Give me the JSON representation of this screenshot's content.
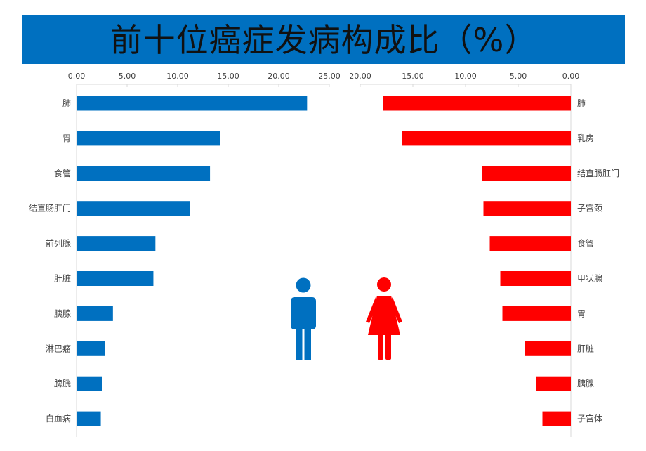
{
  "title": "前十位癌症发病构成比（%）",
  "colors": {
    "banner": "#0070C0",
    "male": "#0070C0",
    "female": "#FF0000",
    "axis": "#D9D9D9",
    "text": "#404040"
  },
  "chart_data": [
    {
      "type": "bar",
      "orientation": "horizontal",
      "side": "left",
      "series_color": "#0070C0",
      "icon": "male-person-icon",
      "categories": [
        "肺",
        "胃",
        "食管",
        "结直肠肛门",
        "前列腺",
        "肝脏",
        "胰腺",
        "淋巴瘤",
        "膀胱",
        "白血病"
      ],
      "values": [
        22.8,
        14.2,
        13.2,
        11.2,
        7.8,
        7.6,
        3.6,
        2.8,
        2.5,
        2.4
      ],
      "xlim": [
        0,
        25
      ],
      "ticks": [
        "0.00",
        "5.00",
        "10.00",
        "15.00",
        "20.00",
        "25.00"
      ],
      "axis_position": "top"
    },
    {
      "type": "bar",
      "orientation": "horizontal",
      "side": "right",
      "reversed": true,
      "series_color": "#FF0000",
      "icon": "female-person-icon",
      "categories": [
        "肺",
        "乳房",
        "结直肠肛门",
        "子宫颈",
        "食管",
        "甲状腺",
        "胃",
        "肝脏",
        "胰腺",
        "子宫体"
      ],
      "values": [
        17.8,
        16.0,
        8.4,
        8.3,
        7.7,
        6.7,
        6.5,
        4.4,
        3.3,
        2.7
      ],
      "xlim": [
        0,
        20
      ],
      "ticks": [
        "20.00",
        "15.00",
        "10.00",
        "5.00",
        "0.00"
      ],
      "axis_position": "top"
    }
  ]
}
